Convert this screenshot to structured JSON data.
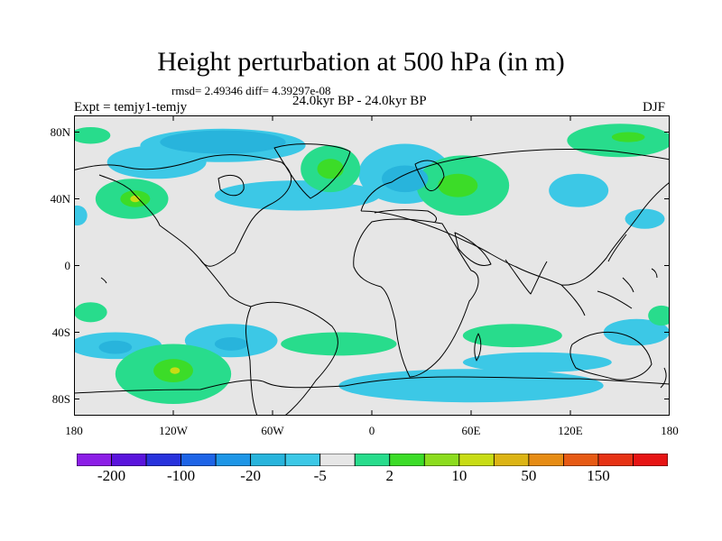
{
  "title": "Height perturbation at 500 hPa (in m)",
  "stats": "rmsd= 2.49346 diff= 4.39297e-08",
  "experiment": "Expt = temjy1-temjy",
  "subtitle": "24.0kyr BP - 24.0kyr BP",
  "season": "DJF",
  "map": {
    "lon_range": [
      -180,
      180
    ],
    "lat_range": [
      -90,
      90
    ],
    "background_color": "#e6e6e6"
  },
  "axes": {
    "y_ticks": [
      {
        "lat": 80,
        "label": "80N"
      },
      {
        "lat": 40,
        "label": "40N"
      },
      {
        "lat": 0,
        "label": "0"
      },
      {
        "lat": -40,
        "label": "40S"
      },
      {
        "lat": -80,
        "label": "80S"
      }
    ],
    "x_ticks": [
      {
        "lon": -180,
        "label": "180"
      },
      {
        "lon": -120,
        "label": "120W"
      },
      {
        "lon": -60,
        "label": "60W"
      },
      {
        "lon": 0,
        "label": "0"
      },
      {
        "lon": 60,
        "label": "60E"
      },
      {
        "lon": 120,
        "label": "120E"
      },
      {
        "lon": 180,
        "label": "180"
      }
    ]
  },
  "colorbar": {
    "colors": [
      "#8c1ee6",
      "#5a14dc",
      "#2832dc",
      "#1e64e6",
      "#1e96e6",
      "#28b4dc",
      "#3cc8e6",
      "#e6e6e6",
      "#28dc8c",
      "#3cdc28",
      "#8cdc1e",
      "#c8dc14",
      "#dcb414",
      "#e68c14",
      "#e65a14",
      "#e63214",
      "#e61414"
    ],
    "labels": [
      {
        "after_box": 1,
        "text": "-200"
      },
      {
        "after_box": 3,
        "text": "-100"
      },
      {
        "after_box": 5,
        "text": "-20"
      },
      {
        "after_box": 7,
        "text": "-5"
      },
      {
        "after_box": 9,
        "text": "2"
      },
      {
        "after_box": 11,
        "text": "10"
      },
      {
        "after_box": 13,
        "text": "50"
      },
      {
        "after_box": 15,
        "text": "150"
      }
    ]
  },
  "anomaly_regions": [
    {
      "name": "arctic-canada-low",
      "lon": -90,
      "lat": 72,
      "rlon": 50,
      "rlat": 10,
      "level": -1
    },
    {
      "name": "arctic-canada-low-core",
      "lon": -90,
      "lat": 74,
      "rlon": 38,
      "rlat": 7,
      "level": -2
    },
    {
      "name": "north-america-low-band",
      "lon": -130,
      "lat": 62,
      "rlon": 30,
      "rlat": 10,
      "level": -1
    },
    {
      "name": "atlantic-low-trough",
      "lon": -45,
      "lat": 42,
      "rlon": 50,
      "rlat": 9,
      "level": -1
    },
    {
      "name": "europe-low",
      "lon": 20,
      "lat": 55,
      "rlon": 28,
      "rlat": 18,
      "level": -1
    },
    {
      "name": "europe-low-core",
      "lon": 20,
      "lat": 52,
      "rlon": 14,
      "rlat": 8,
      "level": -2
    },
    {
      "name": "east-asia-low",
      "lon": 125,
      "lat": 45,
      "rlon": 18,
      "rlat": 10,
      "level": -1
    },
    {
      "name": "west-pacific-low",
      "lon": 165,
      "lat": 28,
      "rlon": 12,
      "rlat": 6,
      "level": -1
    },
    {
      "name": "nw-pacific-low-edge",
      "lon": -178,
      "lat": 30,
      "rlon": 6,
      "rlat": 6,
      "level": -1
    },
    {
      "name": "north-pacific-high",
      "lon": -145,
      "lat": 40,
      "rlon": 22,
      "rlat": 12,
      "level": 1
    },
    {
      "name": "north-pacific-high-core",
      "lon": -143,
      "lat": 40,
      "rlon": 9,
      "rlat": 5,
      "level": 2
    },
    {
      "name": "north-pacific-high-center",
      "lon": -143,
      "lat": 40,
      "rlon": 3,
      "rlat": 2,
      "level": 3
    },
    {
      "name": "north-atlantic-high",
      "lon": -25,
      "lat": 58,
      "rlon": 18,
      "rlat": 14,
      "level": 1
    },
    {
      "name": "north-atlantic-high-core",
      "lon": -25,
      "lat": 58,
      "rlon": 8,
      "rlat": 6,
      "level": 2
    },
    {
      "name": "central-asia-high",
      "lon": 55,
      "lat": 48,
      "rlon": 28,
      "rlat": 18,
      "level": 1
    },
    {
      "name": "central-asia-high-core",
      "lon": 52,
      "lat": 48,
      "rlon": 12,
      "rlat": 7,
      "level": 2
    },
    {
      "name": "arctic-pacific-high",
      "lon": 150,
      "lat": 75,
      "rlon": 32,
      "rlat": 10,
      "level": 1
    },
    {
      "name": "arctic-pacific-high-core",
      "lon": 155,
      "lat": 77,
      "rlon": 10,
      "rlat": 3,
      "level": 2
    },
    {
      "name": "greenland-sea-high",
      "lon": -170,
      "lat": 78,
      "rlon": 12,
      "rlat": 5,
      "level": 1
    },
    {
      "name": "southeast-pacific-low",
      "lon": -85,
      "lat": -45,
      "rlon": 28,
      "rlat": 10,
      "level": -1
    },
    {
      "name": "southeast-pacific-low-core",
      "lon": -85,
      "lat": -47,
      "rlon": 10,
      "rlat": 4,
      "level": -2
    },
    {
      "name": "south-pacific-low-west",
      "lon": -155,
      "lat": -48,
      "rlon": 28,
      "rlat": 8,
      "level": -1
    },
    {
      "name": "south-pacific-low-west-core",
      "lon": -155,
      "lat": -49,
      "rlon": 10,
      "rlat": 4,
      "level": -2
    },
    {
      "name": "south-pacific-high",
      "lon": -120,
      "lat": -65,
      "rlon": 35,
      "rlat": 18,
      "level": 1
    },
    {
      "name": "south-pacific-high-core",
      "lon": -120,
      "lat": -63,
      "rlon": 12,
      "rlat": 7,
      "level": 2
    },
    {
      "name": "south-pacific-high-center",
      "lon": -119,
      "lat": -63,
      "rlon": 3,
      "rlat": 2,
      "level": 3
    },
    {
      "name": "south-atlantic-high",
      "lon": -20,
      "lat": -47,
      "rlon": 35,
      "rlat": 7,
      "level": 1
    },
    {
      "name": "south-indian-high",
      "lon": 85,
      "lat": -42,
      "rlon": 30,
      "rlat": 7,
      "level": 1
    },
    {
      "name": "southern-ocean-low",
      "lon": 60,
      "lat": -72,
      "rlon": 80,
      "rlat": 10,
      "level": -1
    },
    {
      "name": "southern-ocean-low-2",
      "lon": 100,
      "lat": -58,
      "rlon": 45,
      "rlat": 6,
      "level": -1
    },
    {
      "name": "australia-low",
      "lon": 160,
      "lat": -40,
      "rlon": 20,
      "rlat": 8,
      "level": -1
    },
    {
      "name": "tasman-high",
      "lon": 175,
      "lat": -30,
      "rlon": 8,
      "rlat": 6,
      "level": 1
    },
    {
      "name": "west-pacific-south-high",
      "lon": -170,
      "lat": -28,
      "rlon": 10,
      "rlat": 6,
      "level": 1
    }
  ]
}
